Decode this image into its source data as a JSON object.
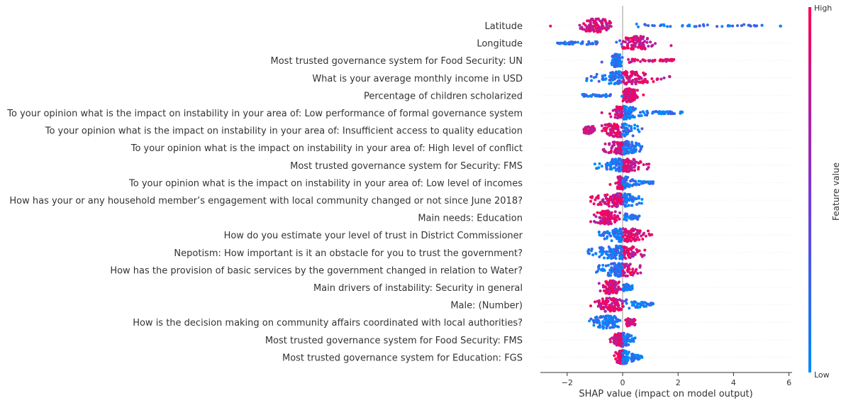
{
  "chart_data": {
    "type": "scatter",
    "subtype": "shap-beeswarm",
    "xlabel": "SHAP value (impact on model output)",
    "x_ticks": [
      -2,
      0,
      2,
      4,
      6
    ],
    "xlim": [
      -2.95,
      6.15
    ],
    "colorbar": {
      "label": "Feature value",
      "high_label": "High",
      "low_label": "Low",
      "low_color": "#008bfb",
      "high_color": "#ff0052"
    },
    "features": [
      {
        "name": "Latitude",
        "range": [
          -2.6,
          5.7
        ],
        "neg_color": "high",
        "core": [
          -1.6,
          -0.3
        ],
        "tail": [
          0.5,
          5.7
        ]
      },
      {
        "name": "Longitude",
        "range": [
          -2.35,
          1.75
        ],
        "neg_color": "low",
        "core": [
          -0.3,
          1.3
        ],
        "tail": [
          -2.35,
          -0.9
        ]
      },
      {
        "name": "Most trusted governance system for Food Security: UN",
        "range": [
          -0.75,
          1.85
        ],
        "neg_color": "low",
        "core": [
          -0.45,
          0.0
        ],
        "tail": [
          0.2,
          1.85
        ]
      },
      {
        "name": "What is your average monthly income in USD",
        "range": [
          -1.3,
          1.7
        ],
        "neg_color": "low",
        "core": [
          -0.9,
          1.0
        ],
        "tail": [
          -1.3,
          1.7
        ]
      },
      {
        "name": "Percentage of children scholarized",
        "range": [
          -1.45,
          0.75
        ],
        "neg_color": "low",
        "core": [
          -0.1,
          0.6
        ],
        "tail": [
          -1.45,
          -0.4
        ]
      },
      {
        "name": "To your opinion what is the impact on instability in your area of: Low performance of formal governance system",
        "range": [
          -0.75,
          2.15
        ],
        "neg_color": "high",
        "core": [
          -0.5,
          0.6
        ],
        "tail": [
          0.6,
          2.15
        ]
      },
      {
        "name": "To your opinion what is the impact on instability in your area of: Insufficient access to quality education",
        "range": [
          -1.4,
          0.7
        ],
        "neg_color": "high",
        "core": [
          -1.0,
          0.7
        ],
        "tail": [
          -1.4,
          -1.0
        ]
      },
      {
        "name": "To your opinion what is the impact on instability in your area of: High level of conflict",
        "range": [
          -0.7,
          0.7
        ],
        "neg_color": "high",
        "core": [
          -0.6,
          0.6
        ],
        "tail": [
          -0.7,
          0.7
        ]
      },
      {
        "name": "Most trusted governance system for Security: FMS",
        "range": [
          -1.0,
          0.95
        ],
        "neg_color": "low",
        "core": [
          -0.7,
          0.8
        ],
        "tail": [
          -1.0,
          0.95
        ]
      },
      {
        "name": "To your opinion what is the impact on instability in your area of: Low level of incomes",
        "range": [
          -0.45,
          1.1
        ],
        "neg_color": "high",
        "core": [
          -0.35,
          0.3
        ],
        "tail": [
          0.3,
          1.1
        ]
      },
      {
        "name": "How has your or any household member’s engagement with local community changed or not since June 2018?",
        "range": [
          -1.15,
          0.7
        ],
        "neg_color": "high",
        "core": [
          -0.9,
          0.6
        ],
        "tail": [
          -1.15,
          0.7
        ]
      },
      {
        "name": "Main needs: Education",
        "range": [
          -1.15,
          0.6
        ],
        "neg_color": "high",
        "core": [
          -1.1,
          0.0
        ],
        "tail": [
          0.05,
          0.6
        ]
      },
      {
        "name": "How do you estimate your level of trust in District Commissioner",
        "range": [
          -0.85,
          1.05
        ],
        "neg_color": "low",
        "core": [
          -0.8,
          0.9
        ],
        "tail": [
          -0.85,
          1.05
        ]
      },
      {
        "name": "Nepotism: How important is it an obstacle for you to trust the government?",
        "range": [
          -1.25,
          0.8
        ],
        "neg_color": "low",
        "core": [
          -0.9,
          0.7
        ],
        "tail": [
          -1.25,
          0.8
        ]
      },
      {
        "name": "How has the provision of basic services by the government changed in relation to Water?",
        "range": [
          -0.95,
          0.65
        ],
        "neg_color": "low",
        "core": [
          -0.8,
          0.6
        ],
        "tail": [
          -0.95,
          0.65
        ]
      },
      {
        "name": "Main drivers of instability: Security in general",
        "range": [
          -0.85,
          0.35
        ],
        "neg_color": "high",
        "core": [
          -0.8,
          0.0
        ],
        "tail": [
          0.0,
          0.35
        ]
      },
      {
        "name": "Male:  (Number)",
        "range": [
          -1.15,
          1.1
        ],
        "neg_color": "high",
        "core": [
          -1.1,
          0.3
        ],
        "tail": [
          0.3,
          1.1
        ]
      },
      {
        "name": "How is the decision making on community affairs coordinated with local authorities?",
        "range": [
          -1.2,
          0.45
        ],
        "neg_color": "low",
        "core": [
          -1.2,
          0.1
        ],
        "tail": [
          0.1,
          0.45
        ]
      },
      {
        "name": "Most trusted governance system for Food Security: FMS",
        "range": [
          -0.45,
          0.45
        ],
        "neg_color": "high",
        "core": [
          -0.4,
          0.3
        ],
        "tail": [
          -0.45,
          0.45
        ]
      },
      {
        "name": "Most trusted governance system for Education: FGS",
        "range": [
          -0.3,
          0.7
        ],
        "neg_color": "high",
        "core": [
          -0.3,
          0.3
        ],
        "tail": [
          0.3,
          0.7
        ]
      }
    ]
  }
}
